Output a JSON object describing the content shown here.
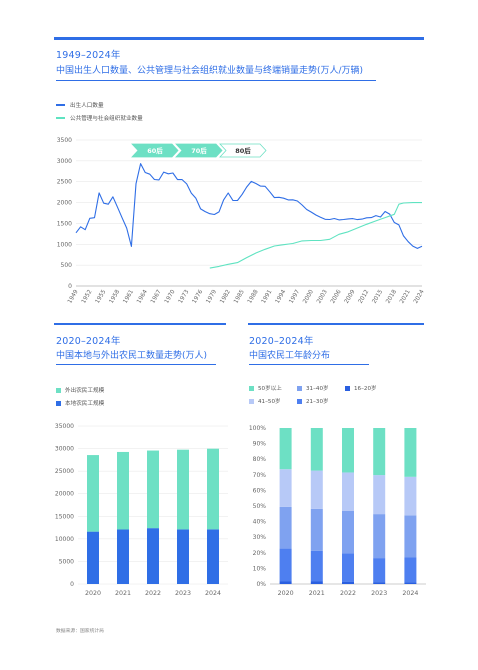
{
  "top": {
    "year_label": "1949–2024年",
    "title": "中国出生人口数量、公共管理与社会组织就业数量与终端销量走势(万人/万辆)"
  },
  "bottom_left": {
    "year_label": "2020–2024年",
    "title": "中国本地与外出农民工数量走势(万人)"
  },
  "bottom_right": {
    "year_label": "2020–2024年",
    "title": "中国农民工年龄分布"
  },
  "source": "数据来源：国家统计局",
  "colors": {
    "blue": "#2f6ee6",
    "teal": "#5fe3c1",
    "dark_blue": "#2f6ee6",
    "age_50plus": "#6de0c4",
    "age_41_50": "#b7c9f7",
    "age_31_40": "#7fa2f0",
    "age_21_30": "#4e7ff0",
    "age_16_20": "#2a5fe0"
  },
  "chart_data": [
    {
      "type": "line",
      "series": [
        {
          "name": "出生人口数量",
          "x": [
            1949,
            1950,
            1951,
            1952,
            1953,
            1954,
            1955,
            1956,
            1957,
            1958,
            1959,
            1960,
            1961,
            1962,
            1963,
            1964,
            1965,
            1966,
            1967,
            1968,
            1969,
            1970,
            1971,
            1972,
            1973,
            1974,
            1975,
            1976,
            1977,
            1978,
            1979,
            1980,
            1981,
            1982,
            1983,
            1984,
            1985,
            1986,
            1987,
            1988,
            1989,
            1990,
            1991,
            1992,
            1993,
            1994,
            1995,
            1996,
            1997,
            1998,
            1999,
            2000,
            2001,
            2002,
            2003,
            2004,
            2005,
            2006,
            2007,
            2008,
            2009,
            2010,
            2011,
            2012,
            2013,
            2014,
            2015,
            2016,
            2017,
            2018,
            2019,
            2020,
            2021,
            2022,
            2023,
            2024
          ],
          "values": [
            1275,
            1419,
            1349,
            1622,
            1637,
            2232,
            1984,
            1961,
            2138,
            1889,
            1635,
            1389,
            949,
            2451,
            2934,
            2721,
            2679,
            2554,
            2543,
            2731,
            2690,
            2710,
            2551,
            2550,
            2447,
            2226,
            2102,
            1849,
            1783,
            1733,
            1715,
            1776,
            2064,
            2230,
            2052,
            2050,
            2196,
            2374,
            2508,
            2457,
            2396,
            2391,
            2258,
            2119,
            2126,
            2104,
            2063,
            2067,
            2038,
            1942,
            1834,
            1771,
            1702,
            1647,
            1599,
            1593,
            1617,
            1584,
            1594,
            1608,
            1615,
            1592,
            1604,
            1635,
            1640,
            1687,
            1655,
            1786,
            1723,
            1523,
            1465,
            1202,
            1062,
            956,
            902,
            954
          ]
        },
        {
          "name": "公共管理与社会组织就业数量",
          "x": [
            1978,
            1980,
            1982,
            1984,
            1986,
            1988,
            1990,
            1992,
            1994,
            1996,
            1998,
            2000,
            2002,
            2004,
            2006,
            2008,
            2010,
            2012,
            2014,
            2016,
            2018,
            2019,
            2020,
            2022,
            2024
          ],
          "values": [
            430,
            470,
            520,
            560,
            680,
            790,
            880,
            960,
            990,
            1020,
            1080,
            1090,
            1090,
            1120,
            1240,
            1300,
            1390,
            1480,
            1560,
            1640,
            1720,
            1960,
            1990,
            2000,
            2000
          ]
        }
      ],
      "annotations": [
        "60后",
        "70后",
        "80后"
      ],
      "x_ticks": [
        "1949",
        "1952",
        "1955",
        "1958",
        "1961",
        "1964",
        "1967",
        "1970",
        "1973",
        "1976",
        "1979",
        "1982",
        "1985",
        "1988",
        "1991",
        "1994",
        "1997",
        "2000",
        "2003",
        "2006",
        "2009",
        "2012",
        "2015",
        "2018",
        "2021",
        "2024"
      ],
      "y_ticks": [
        "0",
        "500",
        "1000",
        "1500",
        "2000",
        "2500",
        "3000",
        "3500"
      ],
      "ylim": [
        0,
        3500
      ]
    },
    {
      "type": "bar",
      "categories": [
        "2020",
        "2021",
        "2022",
        "2023",
        "2024"
      ],
      "series": [
        {
          "name": "本地农民工规模",
          "values": [
            11601,
            12079,
            12372,
            12095,
            12102
          ]
        },
        {
          "name": "外出农民工规模",
          "values": [
            16959,
            17172,
            17190,
            17658,
            17871
          ]
        }
      ],
      "stacked": true,
      "y_ticks": [
        "0",
        "5000",
        "10000",
        "15000",
        "20000",
        "25000",
        "30000",
        "35000"
      ],
      "ylim": [
        0,
        35000
      ]
    },
    {
      "type": "bar",
      "categories": [
        "2020",
        "2021",
        "2022",
        "2023",
        "2024"
      ],
      "series": [
        {
          "name": "16–20岁",
          "values": [
            1.6,
            1.6,
            1.3,
            1.2,
            1.0
          ]
        },
        {
          "name": "21–30岁",
          "values": [
            21.1,
            19.6,
            18.3,
            15.4,
            16.0
          ]
        },
        {
          "name": "31–40岁",
          "values": [
            26.7,
            27.0,
            27.2,
            28.2,
            27.0
          ]
        },
        {
          "name": "41–50岁",
          "values": [
            24.2,
            24.5,
            24.7,
            25.0,
            24.7
          ]
        },
        {
          "name": "50岁以上",
          "values": [
            26.4,
            27.3,
            28.5,
            30.2,
            31.3
          ]
        }
      ],
      "legend_order": [
        "50岁以上",
        "31–40岁",
        "16–20岁",
        "41–50岁",
        "21–30岁"
      ],
      "stacked": true,
      "y_ticks": [
        "0%",
        "10%",
        "20%",
        "30%",
        "40%",
        "50%",
        "60%",
        "70%",
        "80%",
        "90%",
        "100%"
      ],
      "ylim": [
        0,
        100
      ]
    }
  ]
}
